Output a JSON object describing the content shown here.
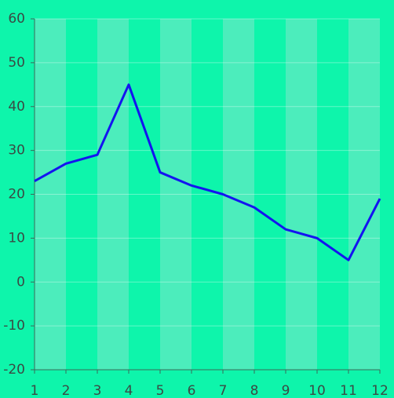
{
  "chart_data": {
    "type": "line",
    "x": [
      1,
      2,
      3,
      4,
      5,
      6,
      7,
      8,
      9,
      10,
      11,
      12
    ],
    "series": [
      {
        "color": "#1414f0",
        "values": [
          23,
          27,
          29,
          45,
          25,
          22,
          20,
          17,
          12,
          10,
          5,
          19
        ]
      }
    ],
    "xlim": [
      1,
      12
    ],
    "xticks": [
      1,
      2,
      3,
      4,
      5,
      6,
      7,
      8,
      9,
      10,
      11,
      12
    ],
    "ylim": [
      -20,
      60
    ],
    "yticks": [
      -20,
      -10,
      0,
      10,
      20,
      30,
      40,
      50,
      60
    ],
    "grid": true,
    "background": "#0ef5ab",
    "stripe_color": "#4cedbc"
  }
}
